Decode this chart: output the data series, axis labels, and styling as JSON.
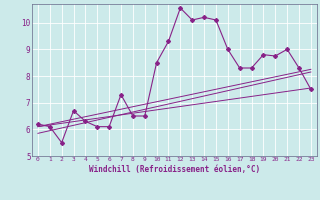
{
  "xlabel": "Windchill (Refroidissement éolien,°C)",
  "bg_color": "#cceaea",
  "line_color": "#882288",
  "grid_color": "#ffffff",
  "xlim": [
    -0.5,
    23.5
  ],
  "ylim": [
    5.0,
    10.7
  ],
  "yticks": [
    5,
    6,
    7,
    8,
    9,
    10
  ],
  "xticks": [
    0,
    1,
    2,
    3,
    4,
    5,
    6,
    7,
    8,
    9,
    10,
    11,
    12,
    13,
    14,
    15,
    16,
    17,
    18,
    19,
    20,
    21,
    22,
    23
  ],
  "series1_x": [
    0,
    1,
    2,
    3,
    4,
    5,
    6,
    7,
    8,
    9,
    10,
    11,
    12,
    13,
    14,
    15,
    16,
    17,
    18,
    19,
    20,
    21,
    22,
    23
  ],
  "series1_y": [
    6.2,
    6.1,
    5.5,
    6.7,
    6.3,
    6.1,
    6.1,
    7.3,
    6.5,
    6.5,
    8.5,
    9.3,
    10.55,
    10.1,
    10.2,
    10.1,
    9.0,
    8.3,
    8.3,
    8.8,
    8.75,
    9.0,
    8.3,
    7.5
  ],
  "series2_x": [
    0,
    23
  ],
  "series2_y": [
    6.1,
    8.25
  ],
  "series3_x": [
    0,
    23
  ],
  "series3_y": [
    5.85,
    8.15
  ],
  "series4_x": [
    0,
    23
  ],
  "series4_y": [
    6.1,
    7.55
  ]
}
